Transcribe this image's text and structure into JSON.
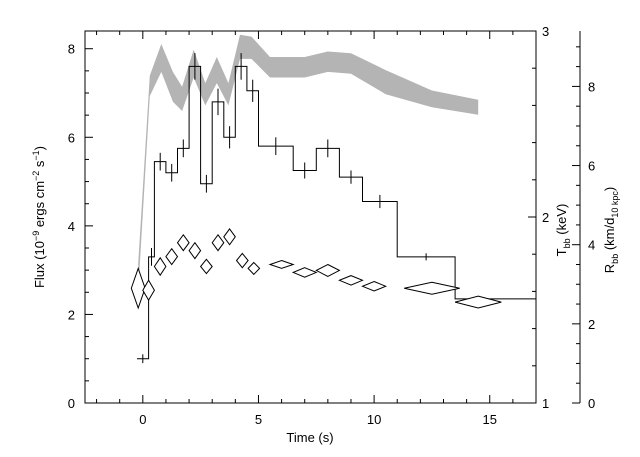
{
  "chart_data": {
    "type": "line",
    "xlabel": "Time (s)",
    "x_ticks": [
      0,
      5,
      10,
      15
    ],
    "xlim": [
      -2.5,
      17
    ],
    "left_axis": {
      "label_parts": [
        "Flux (10",
        "−9",
        " ergs cm",
        "−2",
        " s",
        "−1",
        ")"
      ],
      "ylim": [
        0,
        8.4
      ],
      "ticks": [
        0,
        2,
        4,
        6,
        8
      ]
    },
    "tbb_axis": {
      "label_parts": [
        "T",
        "bb",
        " (keV)"
      ],
      "ylim": [
        1,
        3
      ],
      "ticks": [
        1,
        2,
        3
      ]
    },
    "rbb_axis": {
      "label_parts": [
        "R",
        "bb",
        " (km/d",
        "10 kpc",
        ")"
      ],
      "ylim": [
        0,
        9.4
      ],
      "ticks": [
        0,
        2,
        4,
        6,
        8
      ]
    },
    "series": [
      {
        "kind": "flux-step",
        "color": "#000000",
        "edges": [
          -0.25,
          0.25,
          0.5,
          1.0,
          1.5,
          2.0,
          2.5,
          3.0,
          3.5,
          4.0,
          4.5,
          5.0,
          6.5,
          7.5,
          8.5,
          9.5,
          11.0,
          13.5,
          17.0
        ],
        "values": [
          1.0,
          3.3,
          5.45,
          5.2,
          5.75,
          7.6,
          4.95,
          6.8,
          6.0,
          7.6,
          7.05,
          5.8,
          5.25,
          5.75,
          5.1,
          4.55,
          3.3,
          2.35
        ],
        "errors": [
          0.1,
          0.2,
          0.2,
          0.2,
          0.2,
          0.3,
          0.2,
          0.3,
          0.25,
          0.3,
          0.25,
          0.2,
          0.18,
          0.2,
          0.15,
          0.15,
          0.08,
          0.05
        ]
      },
      {
        "kind": "tbb-band",
        "color": "#b4b4b4",
        "x": [
          -0.2,
          0.3,
          0.8,
          1.3,
          1.7,
          2.2,
          2.7,
          3.2,
          3.7,
          4.2,
          4.7,
          5.5,
          7.0,
          8.0,
          9.0,
          10.5,
          12.5,
          14.5
        ],
        "lower": [
          1.6,
          2.65,
          2.78,
          2.62,
          2.57,
          2.75,
          2.6,
          2.72,
          2.6,
          2.85,
          2.85,
          2.75,
          2.75,
          2.78,
          2.77,
          2.66,
          2.59,
          2.55
        ],
        "upper": [
          1.75,
          2.76,
          2.93,
          2.78,
          2.7,
          2.9,
          2.72,
          2.86,
          2.72,
          2.98,
          2.97,
          2.86,
          2.86,
          2.89,
          2.88,
          2.79,
          2.68,
          2.63
        ]
      },
      {
        "kind": "rbb-diamonds",
        "color": "#000000",
        "x": [
          -0.2,
          0.25,
          0.75,
          1.25,
          1.75,
          2.25,
          2.75,
          3.25,
          3.75,
          4.3,
          4.8,
          6.0,
          7.0,
          8.0,
          9.0,
          10.0,
          12.5,
          14.5
        ],
        "y": [
          2.9,
          2.85,
          3.45,
          3.7,
          4.05,
          3.85,
          3.45,
          4.05,
          4.2,
          3.6,
          3.4,
          3.5,
          3.3,
          3.35,
          3.1,
          2.95,
          2.9,
          2.55
        ],
        "x_halfwidth": [
          0.3,
          0.25,
          0.25,
          0.25,
          0.25,
          0.25,
          0.25,
          0.25,
          0.25,
          0.25,
          0.25,
          0.5,
          0.5,
          0.5,
          0.5,
          0.5,
          1.2,
          1.0
        ],
        "y_halfwidth": [
          0.5,
          0.25,
          0.22,
          0.2,
          0.2,
          0.2,
          0.18,
          0.2,
          0.2,
          0.18,
          0.15,
          0.1,
          0.12,
          0.15,
          0.12,
          0.12,
          0.15,
          0.15
        ]
      }
    ]
  }
}
